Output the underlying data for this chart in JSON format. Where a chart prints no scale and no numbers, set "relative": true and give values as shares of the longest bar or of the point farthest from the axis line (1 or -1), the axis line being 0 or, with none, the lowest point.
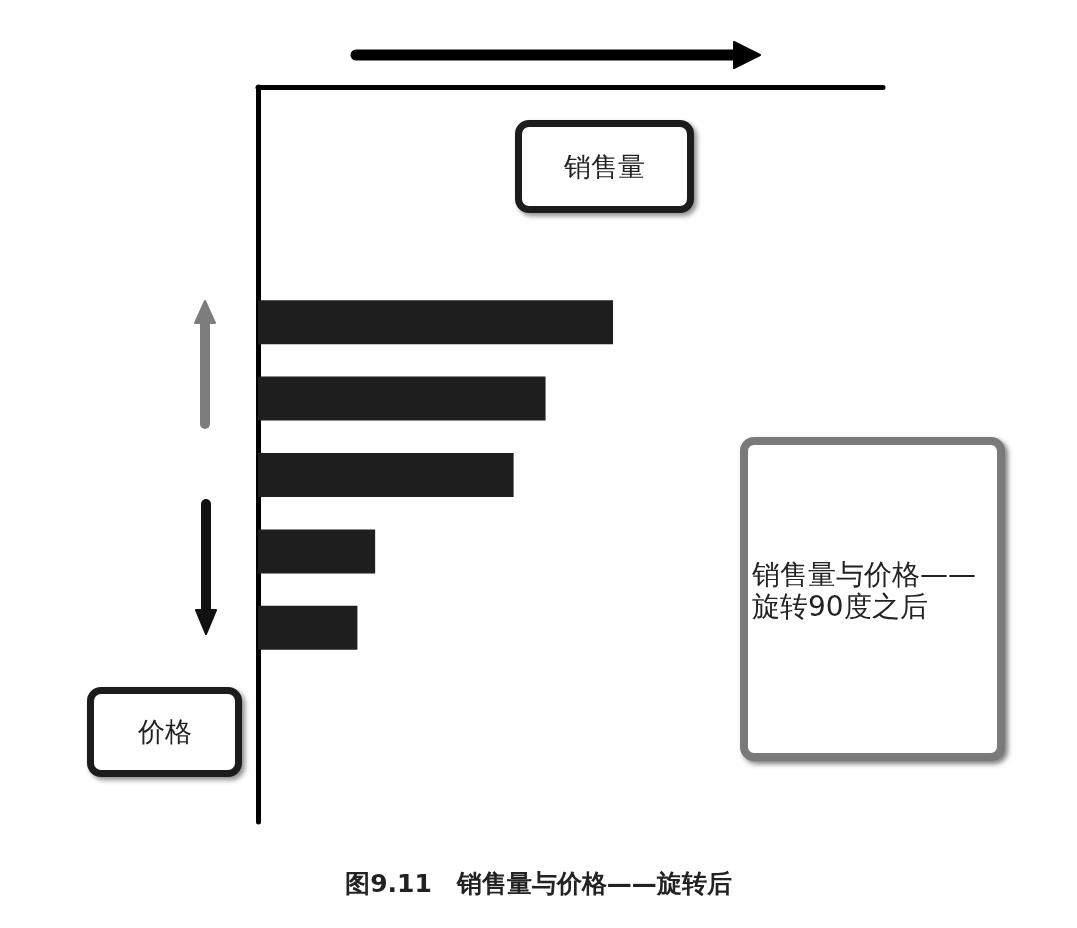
{
  "chart_data": {
    "type": "bar",
    "orientation": "horizontal",
    "relative": true,
    "xlabel": "销售量",
    "ylabel": "价格",
    "categories": [
      null,
      null,
      null,
      null,
      null
    ],
    "values": [
      1,
      0.81,
      0.72,
      0.33,
      0.28
    ],
    "color": "#1e1e1e",
    "annotations": [
      "销售量与价格——旋转90度之后",
      "图9.11　销售量与价格——旋转后"
    ]
  }
}
